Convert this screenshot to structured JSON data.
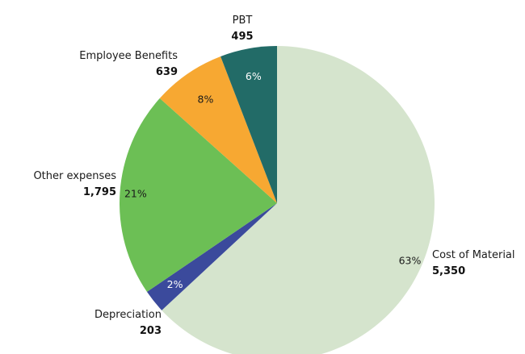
{
  "chart_data": {
    "type": "pie",
    "slices": [
      {
        "label": "Cost of Material",
        "value": 5350,
        "value_label": "5,350",
        "percent_label": "63%",
        "color": "#d5e4cd",
        "pct_color": "#1a1a1a"
      },
      {
        "label": "Depreciation",
        "value": 203,
        "value_label": "203",
        "percent_label": "2%",
        "color": "#3b4a9c",
        "pct_color": "#ffffff"
      },
      {
        "label": "Other expenses",
        "value": 1795,
        "value_label": "1,795",
        "percent_label": "21%",
        "color": "#6cbf55",
        "pct_color": "#1a1a1a"
      },
      {
        "label": "Employee Benefits",
        "value": 639,
        "value_label": "639",
        "percent_label": "8%",
        "color": "#f7a832",
        "pct_color": "#1a1a1a"
      },
      {
        "label": "PBT",
        "value": 495,
        "value_label": "495",
        "percent_label": "6%",
        "color": "#226b67",
        "pct_color": "#ffffff"
      }
    ],
    "start_angle": "12 o'clock",
    "direction": "clockwise",
    "legend": "none"
  }
}
